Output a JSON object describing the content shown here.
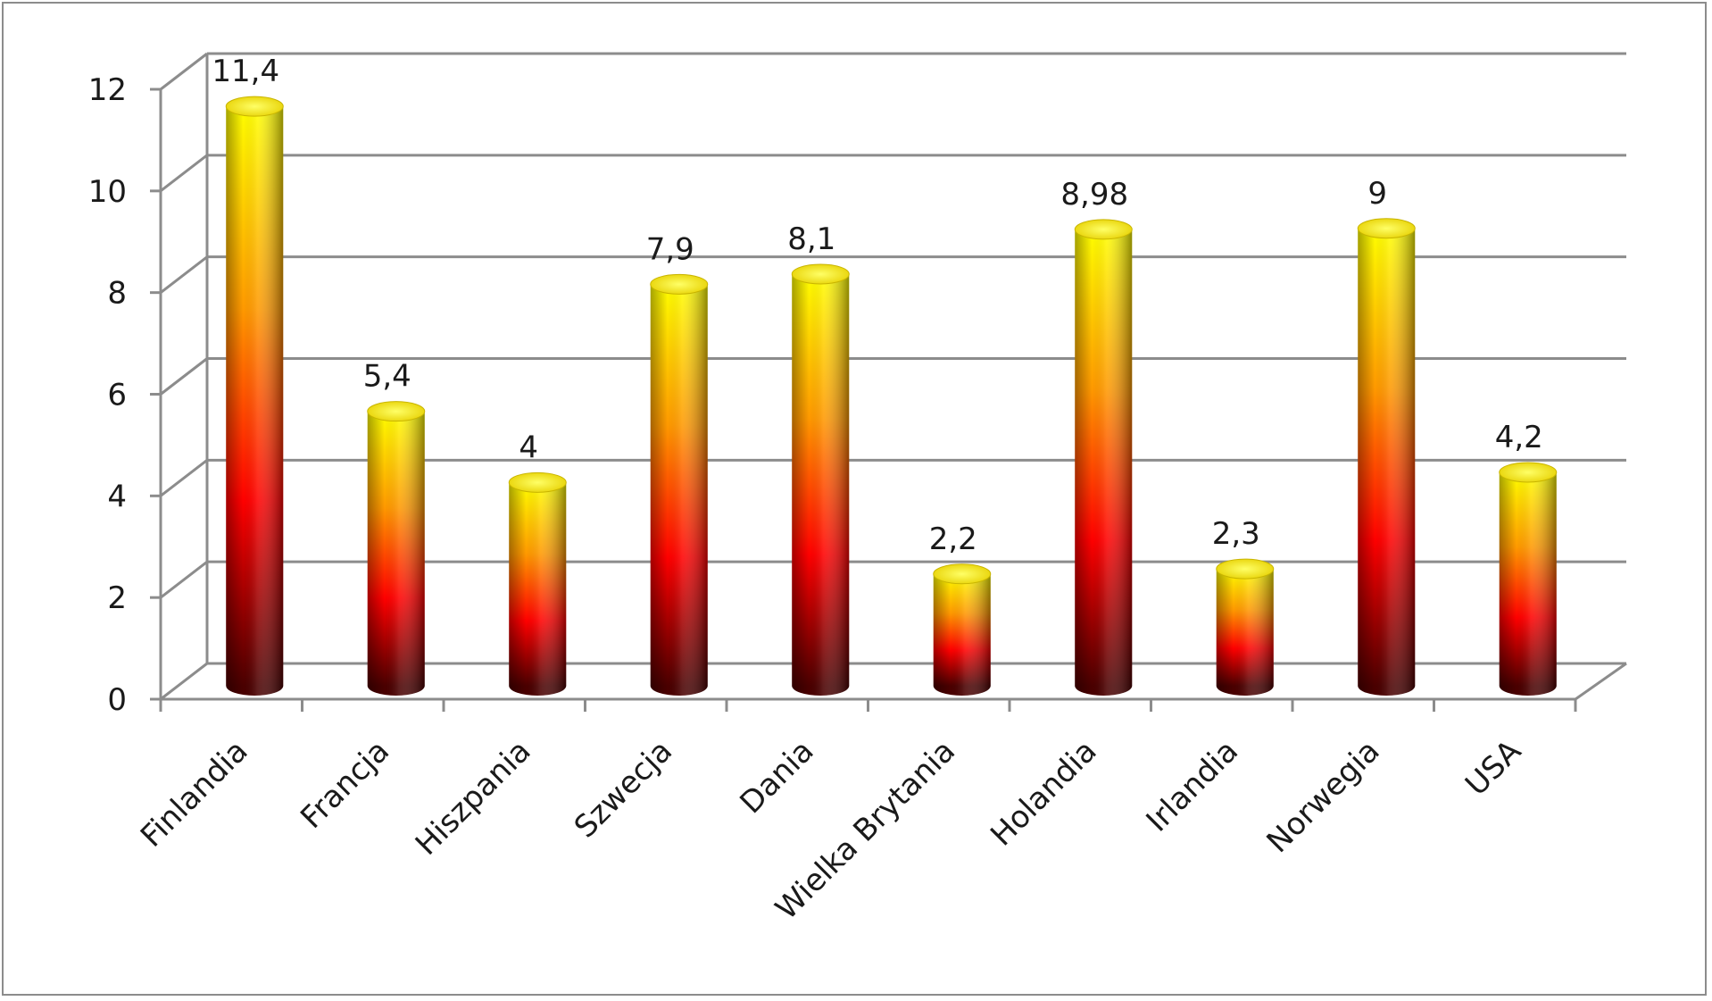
{
  "chart_data": {
    "type": "bar",
    "style": "3d-cylinder",
    "title": "",
    "xlabel": "",
    "ylabel": "",
    "categories": [
      "Finlandia",
      "Francja",
      "Hiszpania",
      "Szwecja",
      "Dania",
      "Wielka Brytania",
      "Holandia",
      "Irlandia",
      "Norwegia",
      "USA"
    ],
    "values": [
      11.4,
      5.4,
      4,
      7.9,
      8.1,
      2.2,
      8.98,
      2.3,
      9,
      4.2
    ],
    "value_labels": [
      "11,4",
      "5,4",
      "4",
      "7,9",
      "8,1",
      "2,2",
      "8,98",
      "2,3",
      "9",
      "4,2"
    ],
    "ylim": [
      0,
      12
    ],
    "yticks": [
      0,
      2,
      4,
      6,
      8,
      10,
      12
    ],
    "ytick_labels": [
      "0",
      "2",
      "4",
      "6",
      "8",
      "10",
      "12"
    ],
    "grid": true,
    "legend": "none",
    "colors": {
      "bar_top": "#ffff00",
      "bar_mid_upper": "#ff9900",
      "bar_mid_lower": "#ff0000",
      "bar_bottom": "#4a0000",
      "gridline": "#8c8c8c"
    }
  }
}
